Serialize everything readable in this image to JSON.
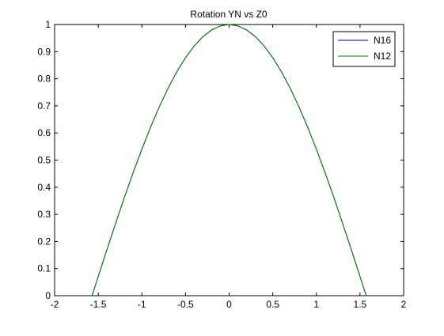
{
  "chart_data": {
    "type": "line",
    "title": "Rotation YN vs Z0",
    "xlabel": "",
    "ylabel": "",
    "xlim": [
      -2,
      2
    ],
    "ylim": [
      0,
      1
    ],
    "xticks": [
      -2,
      -1.5,
      -1,
      -0.5,
      0,
      0.5,
      1,
      1.5,
      2
    ],
    "yticks": [
      0,
      0.1,
      0.2,
      0.3,
      0.4,
      0.5,
      0.6,
      0.7,
      0.8,
      0.9,
      1
    ],
    "xtick_labels": [
      "-2",
      "-1.5",
      "-1",
      "-0.5",
      "0",
      "0.5",
      "1",
      "1.5",
      "2"
    ],
    "ytick_labels": [
      "0",
      "0.1",
      "0.2",
      "0.3",
      "0.4",
      "0.5",
      "0.6",
      "0.7",
      "0.8",
      "0.9",
      "1"
    ],
    "grid": false,
    "legend_position": "top-right",
    "x": [
      -1.5708,
      -1.5,
      -1.4,
      -1.3,
      -1.2,
      -1.1,
      -1.0,
      -0.9,
      -0.8,
      -0.7,
      -0.6,
      -0.5,
      -0.4,
      -0.3,
      -0.2,
      -0.1,
      0.0,
      0.1,
      0.2,
      0.3,
      0.4,
      0.5,
      0.6,
      0.7,
      0.8,
      0.9,
      1.0,
      1.1,
      1.2,
      1.3,
      1.4,
      1.5,
      1.5708
    ],
    "series": [
      {
        "name": "N16",
        "color": "#00007f",
        "values": [
          0.0,
          0.0707,
          0.17,
          0.2675,
          0.3624,
          0.4536,
          0.5403,
          0.6216,
          0.6967,
          0.7648,
          0.8253,
          0.8776,
          0.9211,
          0.9553,
          0.9801,
          0.995,
          1.0,
          0.995,
          0.9801,
          0.9553,
          0.9211,
          0.8776,
          0.8253,
          0.7648,
          0.6967,
          0.6216,
          0.5403,
          0.4536,
          0.3624,
          0.2675,
          0.17,
          0.0707,
          0.0
        ]
      },
      {
        "name": "N12",
        "color": "#007f00",
        "values": [
          0.0,
          0.0707,
          0.17,
          0.2675,
          0.3624,
          0.4536,
          0.5403,
          0.6216,
          0.6967,
          0.7648,
          0.8253,
          0.8776,
          0.9211,
          0.9553,
          0.9801,
          0.995,
          1.0,
          0.995,
          0.9801,
          0.9553,
          0.9211,
          0.8776,
          0.8253,
          0.7648,
          0.6967,
          0.6216,
          0.5403,
          0.4536,
          0.3624,
          0.2675,
          0.17,
          0.0707,
          0.0
        ]
      }
    ]
  }
}
